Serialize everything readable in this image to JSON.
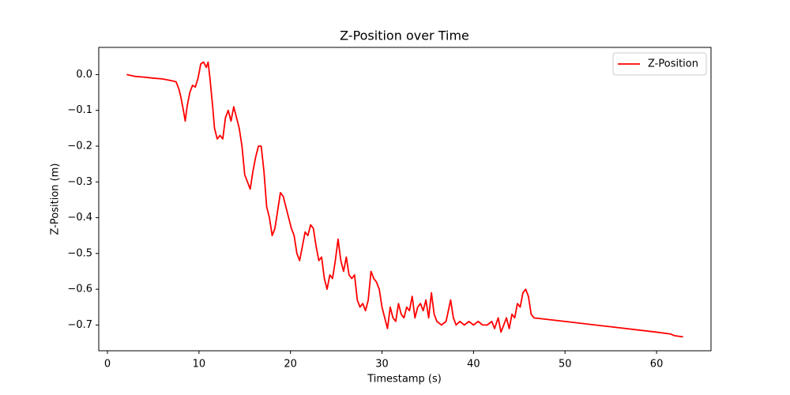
{
  "chart_data": {
    "type": "line",
    "title": "Z-Position over Time",
    "x_label": "Timestamp (s)",
    "y_label": "Z-Position (m)",
    "x": [
      2.1,
      3,
      4,
      5,
      6,
      7,
      7.5,
      7.8,
      8.0,
      8.3,
      8.5,
      8.7,
      9.0,
      9.3,
      9.6,
      9.9,
      10.2,
      10.5,
      10.8,
      11.0,
      11.2,
      11.5,
      11.7,
      12.0,
      12.3,
      12.6,
      12.9,
      13.2,
      13.5,
      13.8,
      14.1,
      14.4,
      14.7,
      15.0,
      15.3,
      15.6,
      15.9,
      16.2,
      16.5,
      16.8,
      17.1,
      17.4,
      17.7,
      18.0,
      18.3,
      18.6,
      18.9,
      19.2,
      19.5,
      19.8,
      20.1,
      20.4,
      20.7,
      21.0,
      21.3,
      21.6,
      21.9,
      22.2,
      22.5,
      22.8,
      23.1,
      23.4,
      23.7,
      24.0,
      24.3,
      24.6,
      24.9,
      25.2,
      25.5,
      25.8,
      26.1,
      26.4,
      26.7,
      27.0,
      27.3,
      27.6,
      27.9,
      28.2,
      28.5,
      28.8,
      29.1,
      29.4,
      29.7,
      30.0,
      30.3,
      30.6,
      30.9,
      31.2,
      31.5,
      31.8,
      32.1,
      32.4,
      32.7,
      33.0,
      33.3,
      33.6,
      33.9,
      34.2,
      34.5,
      34.8,
      35.1,
      35.4,
      35.7,
      36.0,
      36.5,
      37.0,
      37.5,
      37.8,
      38.1,
      38.5,
      39.0,
      39.5,
      40.0,
      40.5,
      41.0,
      41.5,
      42.0,
      42.3,
      42.7,
      43.0,
      43.3,
      43.6,
      43.9,
      44.2,
      44.5,
      44.8,
      45.1,
      45.4,
      45.7,
      46.0,
      46.3,
      46.6,
      50,
      55,
      60,
      61.5,
      62,
      62.9
    ],
    "series": [
      {
        "name": "Z-Position",
        "color": "#ff0000",
        "values": [
          0.0,
          -0.005,
          -0.007,
          -0.01,
          -0.012,
          -0.017,
          -0.02,
          -0.04,
          -0.06,
          -0.1,
          -0.13,
          -0.09,
          -0.05,
          -0.03,
          -0.035,
          -0.01,
          0.03,
          0.035,
          0.02,
          0.035,
          -0.01,
          -0.09,
          -0.15,
          -0.18,
          -0.17,
          -0.18,
          -0.12,
          -0.1,
          -0.13,
          -0.09,
          -0.12,
          -0.15,
          -0.2,
          -0.28,
          -0.3,
          -0.32,
          -0.27,
          -0.23,
          -0.2,
          -0.2,
          -0.27,
          -0.37,
          -0.4,
          -0.45,
          -0.43,
          -0.38,
          -0.33,
          -0.34,
          -0.37,
          -0.4,
          -0.43,
          -0.45,
          -0.5,
          -0.52,
          -0.48,
          -0.44,
          -0.45,
          -0.42,
          -0.43,
          -0.48,
          -0.52,
          -0.51,
          -0.57,
          -0.6,
          -0.56,
          -0.57,
          -0.52,
          -0.46,
          -0.52,
          -0.55,
          -0.51,
          -0.56,
          -0.57,
          -0.56,
          -0.63,
          -0.65,
          -0.64,
          -0.66,
          -0.63,
          -0.55,
          -0.57,
          -0.58,
          -0.6,
          -0.65,
          -0.68,
          -0.71,
          -0.65,
          -0.68,
          -0.69,
          -0.64,
          -0.67,
          -0.68,
          -0.65,
          -0.66,
          -0.62,
          -0.68,
          -0.65,
          -0.64,
          -0.66,
          -0.63,
          -0.68,
          -0.61,
          -0.67,
          -0.69,
          -0.7,
          -0.69,
          -0.63,
          -0.68,
          -0.7,
          -0.69,
          -0.7,
          -0.69,
          -0.7,
          -0.69,
          -0.7,
          -0.7,
          -0.69,
          -0.71,
          -0.68,
          -0.72,
          -0.7,
          -0.68,
          -0.71,
          -0.67,
          -0.68,
          -0.64,
          -0.65,
          -0.61,
          -0.6,
          -0.62,
          -0.67,
          -0.68,
          -0.69,
          -0.705,
          -0.72,
          -0.725,
          -0.73,
          -0.733
        ]
      }
    ],
    "xlim": [
      -0.95,
      65.95
    ],
    "ylim": [
      -0.772,
      0.076
    ],
    "xticks": [
      0,
      10,
      20,
      30,
      40,
      50,
      60
    ],
    "yticks": [
      {
        "value": 0.0,
        "label": "0.0"
      },
      {
        "value": -0.1,
        "label": "−0.1"
      },
      {
        "value": -0.2,
        "label": "−0.2"
      },
      {
        "value": -0.3,
        "label": "−0.3"
      },
      {
        "value": -0.4,
        "label": "−0.4"
      },
      {
        "value": -0.5,
        "label": "−0.5"
      },
      {
        "value": -0.6,
        "label": "−0.6"
      },
      {
        "value": -0.7,
        "label": "−0.7"
      }
    ],
    "legend": "upper right",
    "grid": false
  }
}
